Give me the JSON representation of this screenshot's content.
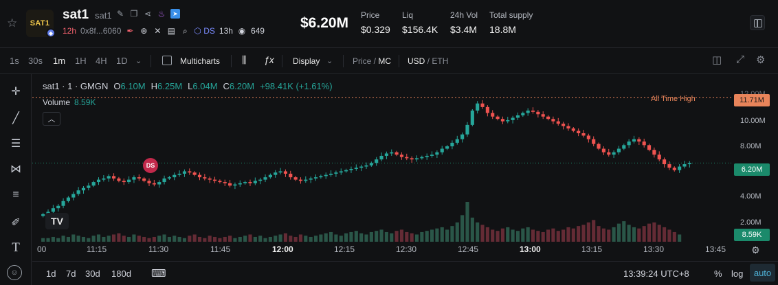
{
  "token": {
    "name": "sat1",
    "symbol": "sat1",
    "logo_text": "SAT1",
    "age": "12h",
    "address": "0x8f...6060",
    "ds_label": "DS",
    "ds_age": "13h",
    "views": "649"
  },
  "stats": {
    "big_price": "$6.20M",
    "price_label": "Price",
    "price_value": "$0.329",
    "liq_label": "Liq",
    "liq_value": "$156.4K",
    "vol_label": "24h Vol",
    "vol_value": "$3.4M",
    "supply_label": "Total supply",
    "supply_value": "18.8M"
  },
  "toolbar": {
    "intervals": [
      "1s",
      "30s",
      "1m",
      "1H",
      "4H",
      "1D"
    ],
    "active_interval": "1m",
    "multicharts": "Multicharts",
    "display": "Display",
    "price_mc": "Price",
    "price_mc_sep": " / ",
    "mc": "MC",
    "usd": "USD",
    "eth": "ETH"
  },
  "legend": {
    "title": "sat1 · 1 · GMGN",
    "o_label": "O",
    "o": "6.10M",
    "h_label": "H",
    "h": "6.25M",
    "l_label": "L",
    "l": "6.04M",
    "c_label": "C",
    "c": "6.20M",
    "change": "+98.41K (+1.61%)",
    "volume_label": "Volume",
    "volume": "8.59K"
  },
  "chart_labels": {
    "ath": "All Time High",
    "ath_value": "11.71M",
    "current_value": "6.20M",
    "volume_tag": "8.59K",
    "ds_marker": "DS",
    "tv_logo": "TV"
  },
  "chart_data": {
    "type": "candlestick",
    "ylabel_ticks": [
      "12.00M",
      "10.00M",
      "8.00M",
      "4.00M",
      "2.00M"
    ],
    "ylim": [
      1.2,
      13.2
    ],
    "x_ticks": [
      "00",
      "11:15",
      "11:30",
      "11:45",
      "12:00",
      "12:15",
      "12:30",
      "12:45",
      "13:00",
      "13:15",
      "13:30",
      "13:45"
    ],
    "bold_x_ticks": [
      "12:00",
      "13:00"
    ],
    "all_time_high": 11.71,
    "current_price": 6.2,
    "close_path": [
      1.9,
      2.1,
      2.4,
      2.6,
      3.0,
      3.3,
      3.6,
      3.9,
      4.1,
      4.3,
      4.6,
      4.8,
      4.9,
      5.1,
      4.9,
      4.7,
      4.6,
      4.8,
      5.0,
      4.9,
      4.7,
      4.5,
      4.4,
      4.6,
      4.9,
      5.0,
      5.2,
      5.3,
      5.5,
      5.4,
      5.2,
      5.0,
      4.9,
      4.8,
      4.7,
      4.6,
      4.5,
      4.3,
      4.4,
      4.5,
      4.6,
      4.5,
      4.7,
      4.8,
      5.0,
      5.2,
      5.4,
      5.5,
      5.3,
      5.0,
      4.8,
      4.7,
      4.8,
      4.9,
      5.0,
      5.1,
      5.2,
      5.3,
      5.4,
      5.5,
      5.6,
      5.7,
      5.8,
      5.9,
      6.0,
      6.2,
      6.5,
      6.8,
      7.0,
      7.1,
      6.9,
      6.7,
      6.6,
      6.5,
      6.6,
      6.7,
      6.8,
      6.9,
      7.1,
      7.4,
      7.6,
      7.9,
      8.2,
      8.6,
      9.4,
      10.6,
      11.2,
      10.9,
      10.4,
      10.1,
      9.9,
      9.7,
      9.8,
      10.0,
      10.2,
      10.4,
      10.6,
      10.5,
      10.3,
      10.1,
      9.9,
      9.7,
      9.5,
      9.3,
      9.1,
      8.9,
      8.7,
      8.5,
      8.2,
      7.8,
      7.4,
      7.1,
      6.9,
      7.1,
      7.4,
      7.7,
      8.0,
      8.2,
      8.0,
      7.7,
      7.3,
      6.9,
      6.5,
      6.1,
      5.8,
      5.6,
      5.9,
      6.1,
      6.2
    ],
    "volume_path": [
      0.3,
      0.3,
      0.4,
      0.3,
      0.5,
      0.4,
      0.6,
      0.5,
      0.4,
      0.3,
      0.5,
      0.6,
      0.4,
      0.5,
      0.6,
      0.7,
      0.5,
      0.4,
      0.6,
      0.5,
      0.4,
      0.3,
      0.4,
      0.5,
      0.6,
      0.4,
      0.5,
      0.4,
      0.3,
      0.5,
      0.6,
      0.4,
      0.3,
      0.5,
      0.4,
      0.3,
      0.4,
      0.5,
      0.3,
      0.4,
      0.5,
      0.6,
      0.4,
      0.5,
      0.3,
      0.4,
      0.5,
      0.6,
      0.7,
      0.5,
      0.4,
      0.6,
      0.5,
      0.4,
      0.5,
      0.6,
      0.7,
      0.8,
      0.6,
      0.5,
      0.7,
      0.8,
      0.9,
      0.7,
      0.6,
      0.8,
      0.9,
      1.0,
      0.8,
      0.7,
      0.9,
      1.0,
      0.8,
      0.7,
      0.6,
      0.8,
      0.9,
      1.0,
      1.1,
      1.2,
      1.0,
      1.3,
      1.6,
      2.2,
      3.3,
      2.0,
      1.6,
      1.4,
      1.2,
      1.0,
      0.9,
      1.1,
      1.2,
      1.0,
      0.9,
      1.1,
      1.2,
      1.0,
      0.9,
      0.8,
      1.0,
      1.1,
      0.9,
      1.0,
      1.2,
      1.1,
      1.3,
      1.4,
      1.6,
      1.8,
      1.3,
      1.1,
      1.0,
      1.2,
      1.5,
      1.7,
      1.4,
      1.2,
      1.1,
      1.3,
      1.5,
      1.6,
      1.4,
      1.2,
      1.0,
      0.8,
      0.6
    ]
  },
  "bottom": {
    "ranges": [
      "1d",
      "7d",
      "30d",
      "180d"
    ],
    "clock": "13:39:24 UTC+8",
    "percent": "%",
    "log": "log",
    "auto": "auto"
  },
  "colors": {
    "up": "#26a69a",
    "down": "#ef5350",
    "ath": "#e8845a",
    "current": "#1b8a6b"
  }
}
